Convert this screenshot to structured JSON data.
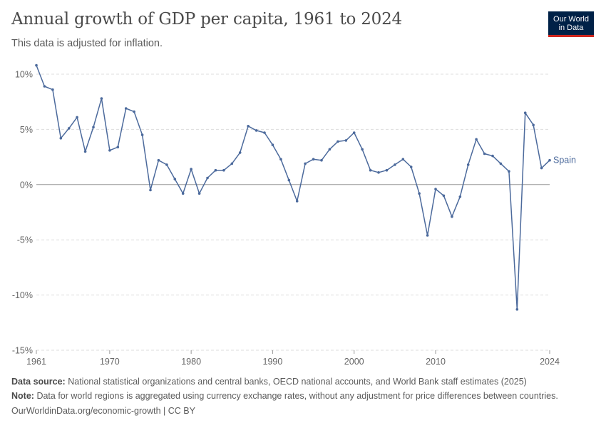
{
  "header": {
    "title": "Annual growth of GDP per capita, 1961 to 2024",
    "subtitle": "This data is adjusted for inflation."
  },
  "logo": {
    "line1": "Our World",
    "line2": "in Data"
  },
  "colors": {
    "series": "#4c6a9c",
    "grid": "#dddddd",
    "zero_line": "#999999",
    "logo_bg": "#002147",
    "logo_accent": "#ce261e"
  },
  "chart_data": {
    "type": "line",
    "x_ticks": [
      "1961",
      "1970",
      "1980",
      "1990",
      "2000",
      "2010",
      "2024"
    ],
    "y_ticks": [
      "-15%",
      "-10%",
      "-5%",
      "0%",
      "5%",
      "10%"
    ],
    "ylim": [
      -15,
      10
    ],
    "xlim": [
      1961,
      2024
    ],
    "grid": true,
    "series": [
      {
        "name": "Spain",
        "x": [
          1961,
          1962,
          1963,
          1964,
          1965,
          1966,
          1967,
          1968,
          1969,
          1970,
          1971,
          1972,
          1973,
          1974,
          1975,
          1976,
          1977,
          1978,
          1979,
          1980,
          1981,
          1982,
          1983,
          1984,
          1985,
          1986,
          1987,
          1988,
          1989,
          1990,
          1991,
          1992,
          1993,
          1994,
          1995,
          1996,
          1997,
          1998,
          1999,
          2000,
          2001,
          2002,
          2003,
          2004,
          2005,
          2006,
          2007,
          2008,
          2009,
          2010,
          2011,
          2012,
          2013,
          2014,
          2015,
          2016,
          2017,
          2018,
          2019,
          2020,
          2021,
          2022,
          2023,
          2024
        ],
        "values": [
          10.8,
          8.9,
          8.6,
          4.2,
          5.1,
          6.1,
          3.0,
          5.2,
          7.8,
          3.1,
          3.4,
          6.9,
          6.6,
          4.5,
          -0.5,
          2.2,
          1.8,
          0.5,
          -0.8,
          1.4,
          -0.8,
          0.6,
          1.3,
          1.3,
          1.9,
          2.9,
          5.3,
          4.9,
          4.7,
          3.6,
          2.3,
          0.4,
          -1.5,
          1.9,
          2.3,
          2.2,
          3.2,
          3.9,
          4.0,
          4.7,
          3.2,
          1.3,
          1.1,
          1.3,
          1.8,
          2.3,
          1.6,
          -0.8,
          -4.6,
          -0.4,
          -1.0,
          -2.9,
          -1.1,
          1.8,
          4.1,
          2.8,
          2.6,
          1.9,
          1.2,
          -11.3,
          6.5,
          5.4,
          1.5,
          2.2
        ]
      }
    ]
  },
  "footer": {
    "source_label": "Data source:",
    "source_text": "National statistical organizations and central banks, OECD national accounts, and World Bank staff estimates (2025)",
    "note_label": "Note:",
    "note_text": "Data for world regions is aggregated using currency exchange rates, without any adjustment for price differences between countries.",
    "link": "OurWorldinData.org/economic-growth | CC BY"
  }
}
